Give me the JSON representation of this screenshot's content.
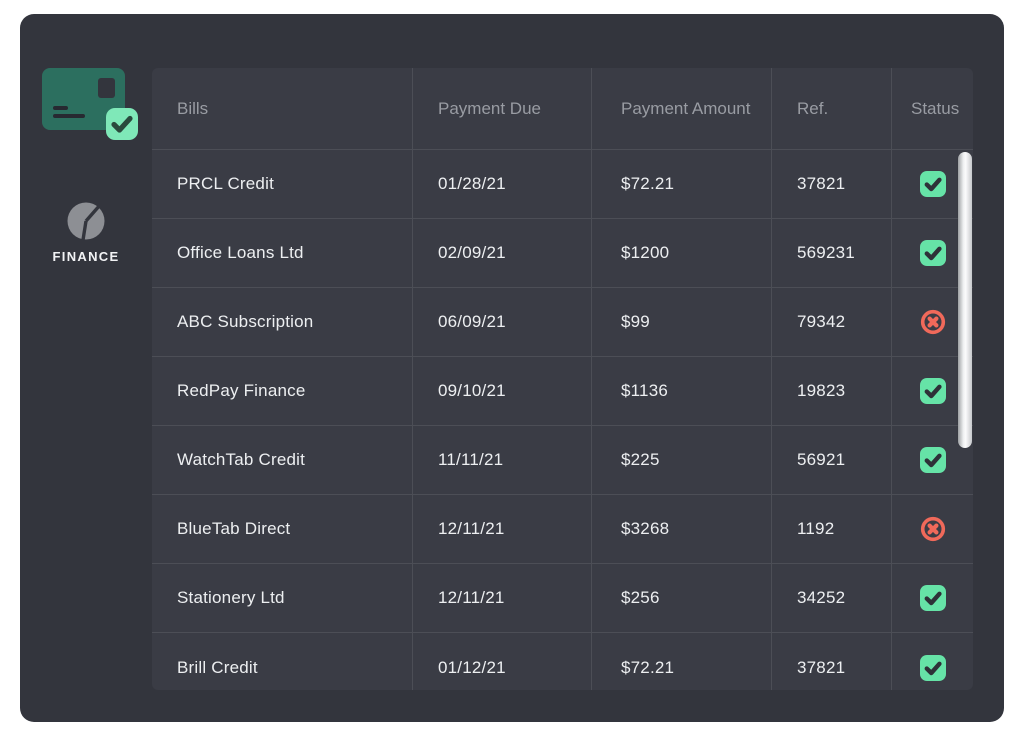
{
  "colors": {
    "page_bg": "#ffffff",
    "panel_bg": "#33353d",
    "table_bg": "#3a3c45",
    "divider": "#4c4e56",
    "header_text": "#999ca3",
    "cell_text": "#edeff1",
    "mint_accent": "#66e3a7",
    "mint_badge": "#7fe8b8",
    "check_dark": "#2e3138",
    "red_accent": "#f0695a",
    "card_teal": "#2c6f5f",
    "pie_gray": "#8d8f94"
  },
  "sidebar": {
    "brand_label": "FINANCE",
    "icons": [
      "credit-card-icon",
      "check-badge-icon",
      "pie-chart-icon"
    ]
  },
  "table": {
    "columns": [
      "Bills",
      "Payment Due",
      "Payment Amount",
      "Ref.",
      "Status"
    ],
    "rows": [
      {
        "bill": "PRCL Credit",
        "due": "01/28/21",
        "amount": "$72.21",
        "ref": "37821",
        "status": "paid"
      },
      {
        "bill": "Office Loans Ltd",
        "due": "02/09/21",
        "amount": "$1200",
        "ref": "569231",
        "status": "paid"
      },
      {
        "bill": "ABC Subscription",
        "due": "06/09/21",
        "amount": "$99",
        "ref": "79342",
        "status": "unpaid"
      },
      {
        "bill": "RedPay Finance",
        "due": "09/10/21",
        "amount": "$1136",
        "ref": "19823",
        "status": "paid"
      },
      {
        "bill": "WatchTab Credit",
        "due": "11/11/21",
        "amount": "$225",
        "ref": "56921",
        "status": "paid"
      },
      {
        "bill": "BlueTab Direct",
        "due": "12/11/21",
        "amount": "$3268",
        "ref": "1192",
        "status": "unpaid"
      },
      {
        "bill": "Stationery Ltd",
        "due": "12/11/21",
        "amount": "$256",
        "ref": "34252",
        "status": "paid"
      },
      {
        "bill": "Brill Credit",
        "due": "01/12/21",
        "amount": "$72.21",
        "ref": "37821",
        "status": "paid"
      }
    ],
    "status_icon_names": {
      "paid": "status-paid-check-icon",
      "unpaid": "status-unpaid-cross-icon"
    }
  }
}
